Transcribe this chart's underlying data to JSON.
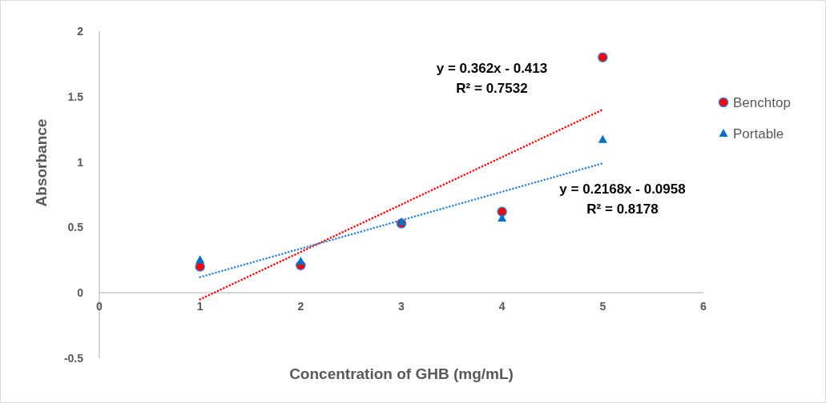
{
  "chart_data": {
    "type": "scatter",
    "xlabel": "Concentration of GHB (mg/mL)",
    "ylabel": "Absorbance",
    "xlim": [
      0,
      6
    ],
    "xticks": [
      0,
      1,
      2,
      3,
      4,
      5,
      6
    ],
    "ylim": [
      -0.5,
      2
    ],
    "yticks": [
      -0.5,
      0,
      0.5,
      1,
      1.5,
      2
    ],
    "grid": false,
    "legend": "right",
    "series": [
      {
        "name": "Benchtop",
        "color": "#ff0000",
        "marker": "circle",
        "x": [
          1,
          2,
          3,
          4,
          5
        ],
        "values": [
          0.2,
          0.21,
          0.53,
          0.62,
          1.8
        ]
      },
      {
        "name": "Portable",
        "color": "#0070c0",
        "marker": "triangle",
        "x": [
          1,
          2,
          3,
          4,
          5
        ],
        "values": [
          0.25,
          0.24,
          0.54,
          0.57,
          1.17
        ]
      },
      {
        "type": "line",
        "color": "#ff0000",
        "line_style": "dotted",
        "x": [
          1,
          5
        ],
        "values": [
          -0.05,
          1.4
        ]
      },
      {
        "type": "line",
        "color": "#2e86d6",
        "line_style": "dotted",
        "x": [
          1,
          5
        ],
        "values": [
          0.12,
          0.99
        ]
      }
    ],
    "annotations": [
      "y = 0.362x - 0.413\nR² = 0.7532",
      "y = 0.2168x - 0.0958\nR² = 0.8178"
    ]
  }
}
